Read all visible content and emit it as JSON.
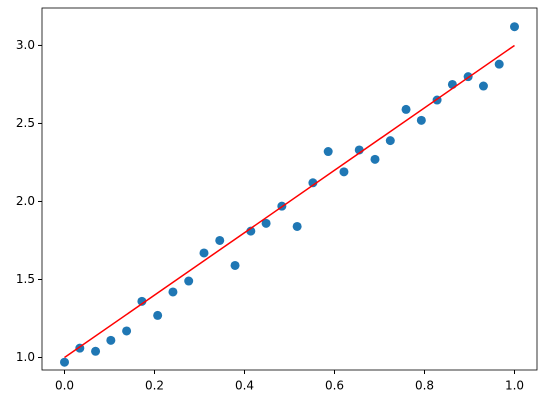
{
  "chart_data": {
    "type": "scatter",
    "xlim": [
      -0.05,
      1.05
    ],
    "ylim": [
      0.92,
      3.24
    ],
    "xticks": [
      {
        "value": 0,
        "label": "0.0"
      },
      {
        "value": 0.2,
        "label": "0.2"
      },
      {
        "value": 0.4,
        "label": "0.4"
      },
      {
        "value": 0.6,
        "label": "0.6"
      },
      {
        "value": 0.8,
        "label": "0.8"
      },
      {
        "value": 1,
        "label": "1.0"
      }
    ],
    "yticks": [
      {
        "value": 1,
        "label": "1.0"
      },
      {
        "value": 1.5,
        "label": "1.5"
      },
      {
        "value": 2,
        "label": "2.0"
      },
      {
        "value": 2.5,
        "label": "2.5"
      },
      {
        "value": 3,
        "label": "3.0"
      }
    ],
    "grid": false,
    "series": [
      {
        "type": "scatter",
        "color": "#1f77b4",
        "x": [
          0,
          0.034,
          0.069,
          0.103,
          0.138,
          0.172,
          0.207,
          0.241,
          0.276,
          0.31,
          0.345,
          0.379,
          0.414,
          0.448,
          0.483,
          0.517,
          0.552,
          0.586,
          0.621,
          0.655,
          0.69,
          0.724,
          0.759,
          0.793,
          0.828,
          0.862,
          0.897,
          0.931,
          0.966,
          1
        ],
        "values": [
          0.97,
          1.06,
          1.04,
          1.11,
          1.17,
          1.36,
          1.27,
          1.42,
          1.49,
          1.67,
          1.75,
          1.59,
          1.81,
          1.86,
          1.97,
          1.84,
          2.12,
          2.32,
          2.19,
          2.33,
          2.27,
          2.39,
          2.59,
          2.52,
          2.65,
          2.75,
          2.8,
          2.74,
          2.88,
          3.12
        ]
      },
      {
        "type": "line",
        "color": "#ff0000",
        "x": [
          0,
          1
        ],
        "values": [
          1,
          3
        ]
      }
    ]
  }
}
